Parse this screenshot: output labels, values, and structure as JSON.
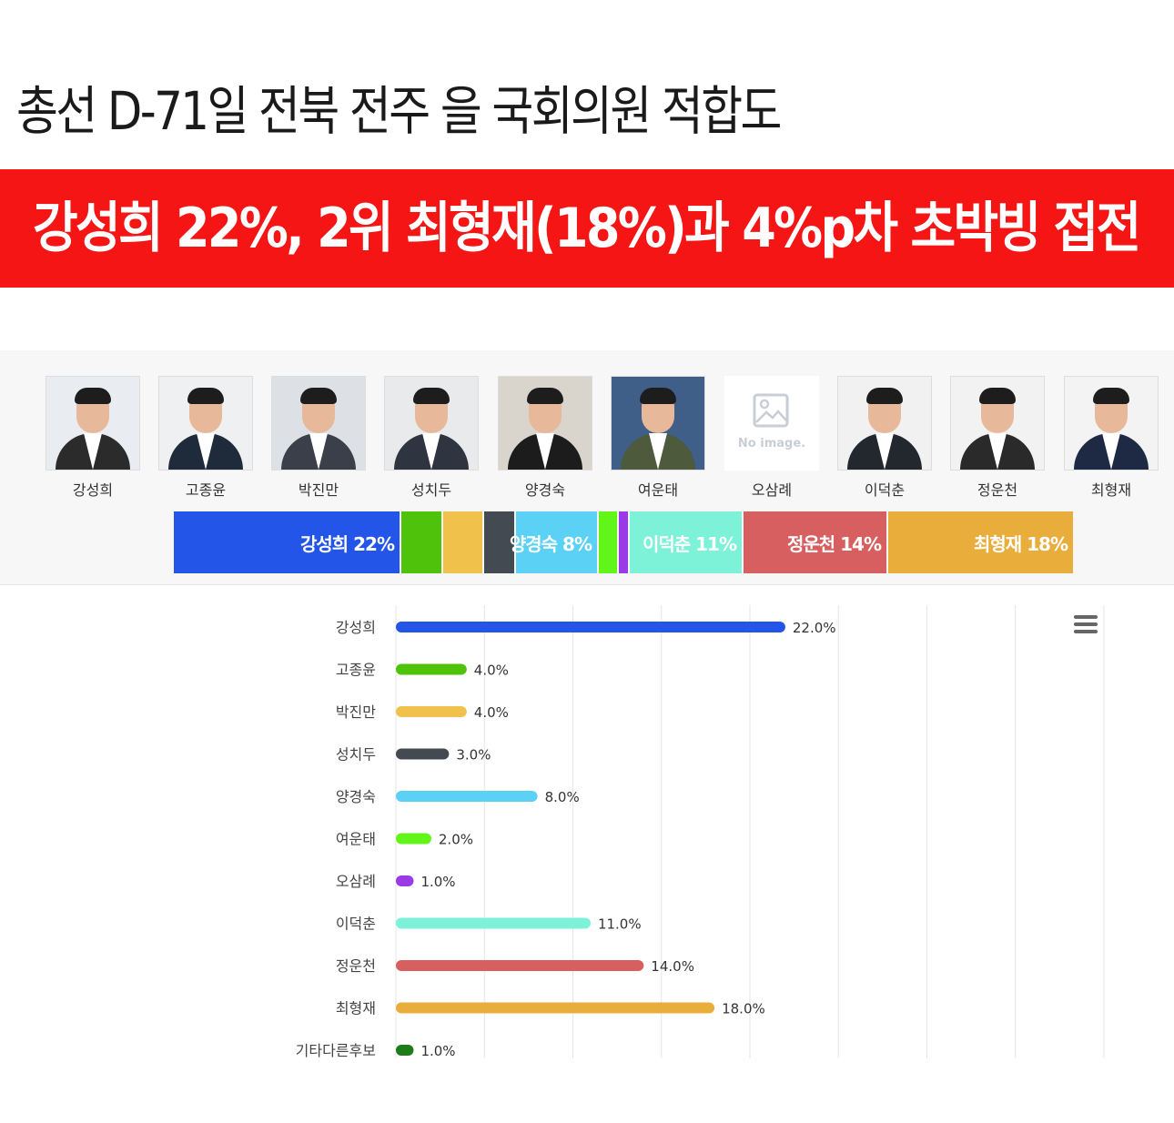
{
  "headline": "총선 D-71일 전북 전주 을 국회의원 적합도",
  "banner": "강성희 22%, 2위 최형재(18%)과 4%p차 초박빙 접전",
  "no_image_label": "No image.",
  "candidates": [
    {
      "name": "강성희",
      "suit": "#2b2b2b",
      "bg": "#e9ecf0",
      "photo": true
    },
    {
      "name": "고종윤",
      "suit": "#1f2a3a",
      "bg": "#eef0f2",
      "photo": true
    },
    {
      "name": "박진만",
      "suit": "#3a3f4a",
      "bg": "#dde1e6",
      "photo": true
    },
    {
      "name": "성치두",
      "suit": "#2e3440",
      "bg": "#e8eaec",
      "photo": true
    },
    {
      "name": "양경숙",
      "suit": "#1c1c1c",
      "bg": "#d9d4cc",
      "photo": true
    },
    {
      "name": "여운태",
      "suit": "#4d5a3c",
      "bg": "#3f5f88",
      "photo": true
    },
    {
      "name": "오삼례",
      "photo": false
    },
    {
      "name": "이덕춘",
      "suit": "#23272e",
      "bg": "#f1f1f1",
      "photo": true
    },
    {
      "name": "정운천",
      "suit": "#2a2a2a",
      "bg": "#f2f2f2",
      "photo": true
    },
    {
      "name": "최형재",
      "suit": "#1e2a44",
      "bg": "#f3f3f3",
      "photo": true
    }
  ],
  "stack": [
    {
      "label": "강성희 22%",
      "value": 22,
      "color": "#2355e8"
    },
    {
      "label": "",
      "value": 4,
      "color": "#4fc30b"
    },
    {
      "label": "",
      "value": 4,
      "color": "#f0c24b"
    },
    {
      "label": "",
      "value": 3,
      "color": "#434a52"
    },
    {
      "label": "양경숙 8%",
      "value": 8,
      "color": "#5ad1f5"
    },
    {
      "label": "",
      "value": 2,
      "color": "#62f51a"
    },
    {
      "label": "",
      "value": 1,
      "color": "#9a3be8"
    },
    {
      "label": "이덕춘 11%",
      "value": 11,
      "color": "#7ef2d8"
    },
    {
      "label": "정운천 14%",
      "value": 14,
      "color": "#d85f5f"
    },
    {
      "label": "최형재 18%",
      "value": 18,
      "color": "#e9ad3c"
    }
  ],
  "chart_data": {
    "type": "bar",
    "orientation": "horizontal",
    "categories": [
      "강성희",
      "고종윤",
      "박진만",
      "성치두",
      "양경숙",
      "여운태",
      "오삼례",
      "이덕춘",
      "정운천",
      "최형재",
      "기타다른후보"
    ],
    "values": [
      22.0,
      4.0,
      4.0,
      3.0,
      8.0,
      2.0,
      1.0,
      11.0,
      14.0,
      18.0,
      1.0
    ],
    "value_labels": [
      "22.0%",
      "4.0%",
      "4.0%",
      "3.0%",
      "8.0%",
      "2.0%",
      "1.0%",
      "11.0%",
      "14.0%",
      "18.0%",
      "1.0%"
    ],
    "colors": [
      "#2355e8",
      "#4fc30b",
      "#f0c24b",
      "#434a52",
      "#5ad1f5",
      "#62f51a",
      "#9a3be8",
      "#7ef2d8",
      "#d85f5f",
      "#e9ad3c",
      "#1f7a1a"
    ],
    "xlim": [
      0,
      40
    ],
    "grid": true,
    "title": "",
    "xlabel": "",
    "ylabel": ""
  }
}
